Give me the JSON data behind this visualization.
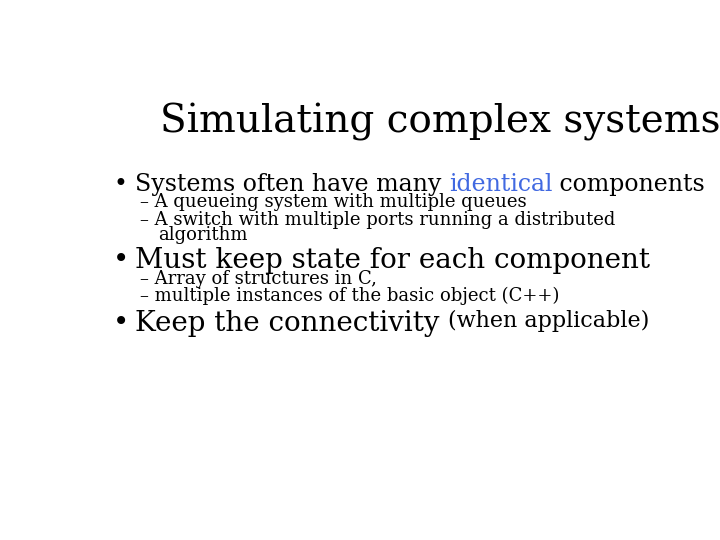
{
  "title": "Simulating complex systems",
  "title_fontsize": 28,
  "title_color": "#000000",
  "title_font": "DejaVu Serif",
  "background_color": "#ffffff",
  "bullet1_pre": "Systems often have many ",
  "bullet1_highlight": "identical",
  "bullet1_highlight_color": "#4169E1",
  "bullet1_post": " components",
  "bullet1_fontsize": 17,
  "sub1a": "A queueing system with multiple queues",
  "sub1b_line1": "A switch with multiple ports running a distributed",
  "sub1b_line2": "algorithm",
  "sub_fontsize": 13,
  "bullet2": "Must keep state for each component",
  "bullet2_fontsize": 20,
  "sub2a": "Array of structures in C,",
  "sub2b": "multiple instances of the basic object (C++)",
  "bullet3_pre": "Keep the connectivity ",
  "bullet3_post": "(when applicable)",
  "bullet3_fontsize": 20,
  "bullet3_post_fontsize": 16,
  "bullet_color": "#000000",
  "sub_color": "#000000",
  "dash": "–"
}
